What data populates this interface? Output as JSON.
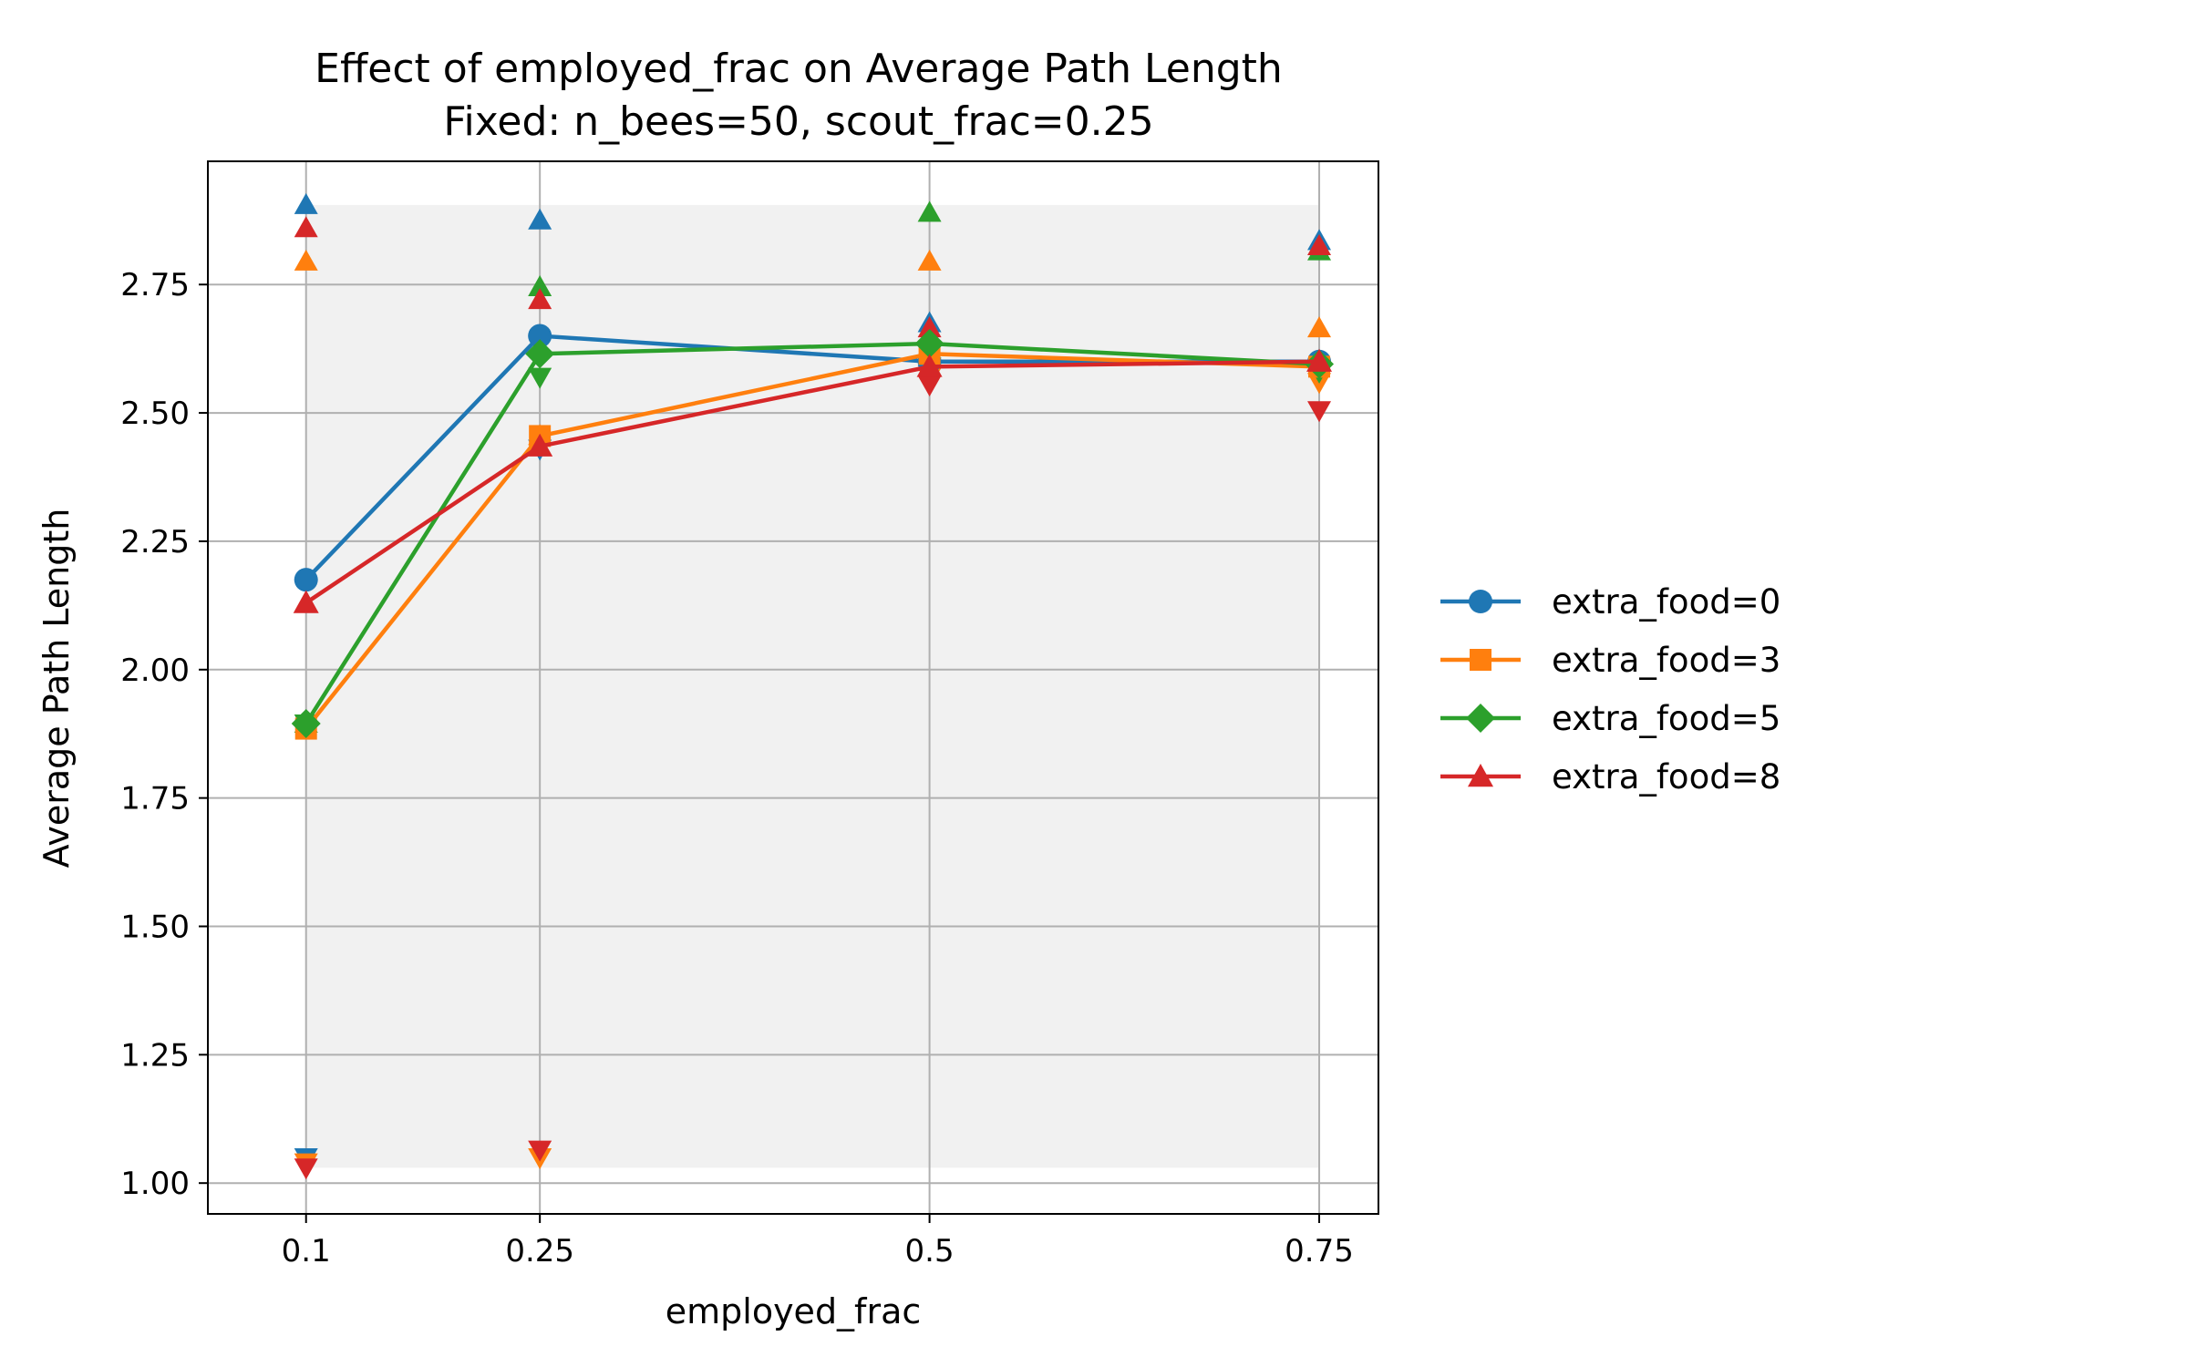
{
  "chart_data": {
    "type": "line",
    "title": "Effect of employed_frac on Average Path Length",
    "subtitle": "Fixed: n_bees=50, scout_frac=0.25",
    "xlabel": "employed_frac",
    "ylabel": "Average Path Length",
    "x": [
      0.1,
      0.25,
      0.5,
      0.75
    ],
    "x_tick_labels": [
      "0.1",
      "0.25",
      "0.5",
      "0.75"
    ],
    "xlim": [
      0.037,
      0.788
    ],
    "ylim": [
      0.94,
      2.99
    ],
    "y_ticks": [
      1.0,
      1.25,
      1.5,
      1.75,
      2.0,
      2.25,
      2.5,
      2.75
    ],
    "y_tick_labels": [
      "1.00",
      "1.25",
      "1.50",
      "1.75",
      "2.00",
      "2.25",
      "2.50",
      "2.75"
    ],
    "grid": true,
    "legend_position": "outside-right",
    "shaded_band": {
      "x_range": [
        0.1,
        0.75
      ],
      "y_range": [
        1.03,
        2.905
      ],
      "color": "#dcdcdc"
    },
    "series": [
      {
        "name": "extra_food=0",
        "color": "#1f77b4",
        "marker": "circle",
        "values": [
          2.175,
          2.65,
          2.6,
          2.6
        ],
        "max": [
          2.905,
          2.875,
          2.675,
          2.835
        ],
        "min": [
          1.05,
          2.43,
          2.575,
          2.575
        ]
      },
      {
        "name": "extra_food=3",
        "color": "#ff7f0e",
        "marker": "square",
        "values": [
          1.885,
          2.455,
          2.615,
          2.59
        ],
        "max": [
          2.795,
          2.455,
          2.795,
          2.665
        ],
        "min": [
          1.04,
          1.05,
          2.57,
          2.56
        ]
      },
      {
        "name": "extra_food=5",
        "color": "#2ca02c",
        "marker": "diamond",
        "values": [
          1.895,
          2.615,
          2.635,
          2.595
        ],
        "max": [
          1.895,
          2.745,
          2.89,
          2.815
        ],
        "min": [
          1.895,
          2.57,
          2.59,
          2.58
        ]
      },
      {
        "name": "extra_food=8",
        "color": "#d62728",
        "marker": "triangle",
        "values": [
          2.13,
          2.435,
          2.59,
          2.6
        ],
        "max": [
          2.86,
          2.72,
          2.665,
          2.825
        ],
        "min": [
          1.03,
          1.065,
          2.555,
          2.505
        ]
      }
    ]
  }
}
